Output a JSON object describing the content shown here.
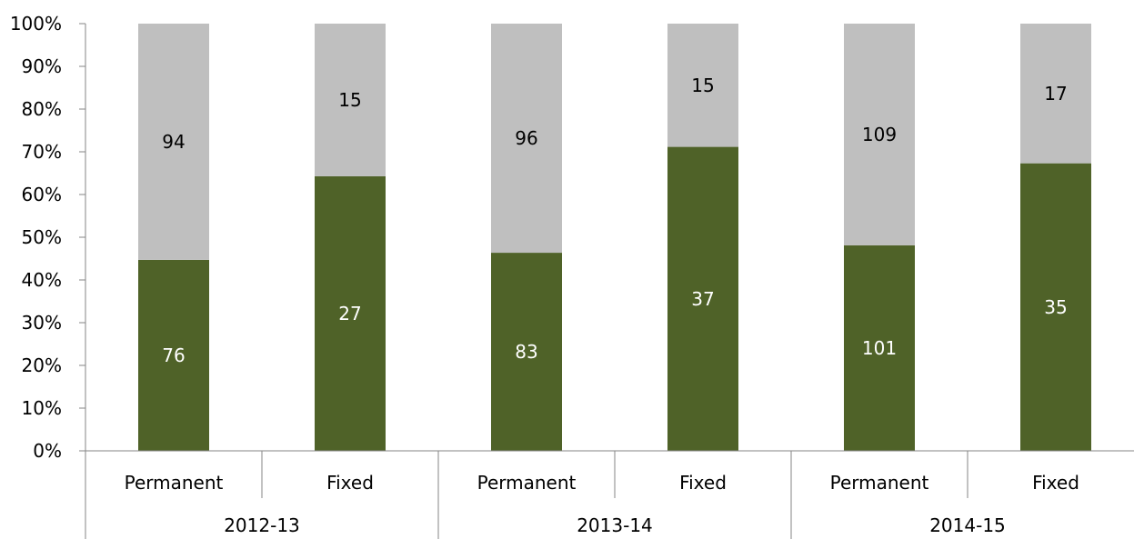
{
  "chart_data": {
    "type": "bar",
    "stacked": "percent",
    "groups": [
      {
        "label": "2012-13",
        "categories": [
          "Permanent",
          "Fixed"
        ]
      },
      {
        "label": "2013-14",
        "categories": [
          "Permanent",
          "Fixed"
        ]
      },
      {
        "label": "2014-15",
        "categories": [
          "Permanent",
          "Fixed"
        ]
      }
    ],
    "series": [
      {
        "values": [
          76,
          27,
          83,
          37,
          101,
          35
        ],
        "color": "#4F6228",
        "label_color": "#FFFFFF"
      },
      {
        "values": [
          94,
          15,
          96,
          15,
          109,
          17
        ],
        "color": "#BFBFBF",
        "label_color": "#000000"
      }
    ],
    "ylim": [
      0,
      100
    ],
    "yticks": [
      "0%",
      "10%",
      "20%",
      "30%",
      "40%",
      "50%",
      "60%",
      "70%",
      "80%",
      "90%",
      "100%"
    ],
    "grid": false,
    "legend": "none",
    "title": "",
    "xlabel": "",
    "ylabel": ""
  }
}
